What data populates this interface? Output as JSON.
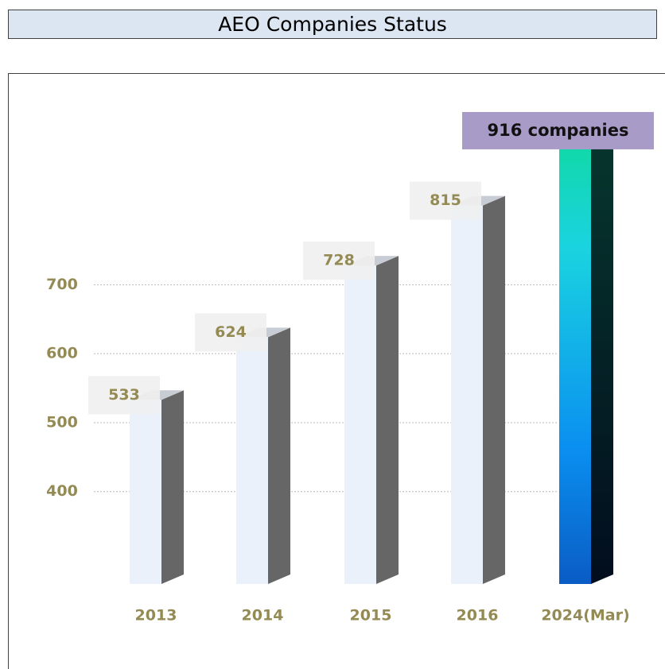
{
  "chart_data": {
    "type": "bar3d",
    "title": "AEO Companies Status",
    "categories": [
      "2013",
      "2014",
      "2015",
      "2016",
      "2024(Mar)"
    ],
    "values": [
      533,
      624,
      728,
      815,
      916
    ],
    "value_labels": [
      "533",
      "624",
      "728",
      "815",
      "916 companies"
    ],
    "ylim": [
      266,
      1007
    ],
    "yticks": [
      400,
      500,
      600,
      700
    ],
    "grid": true,
    "color": "#eaf1fa",
    "highlight_color": "#a99bc8"
  }
}
